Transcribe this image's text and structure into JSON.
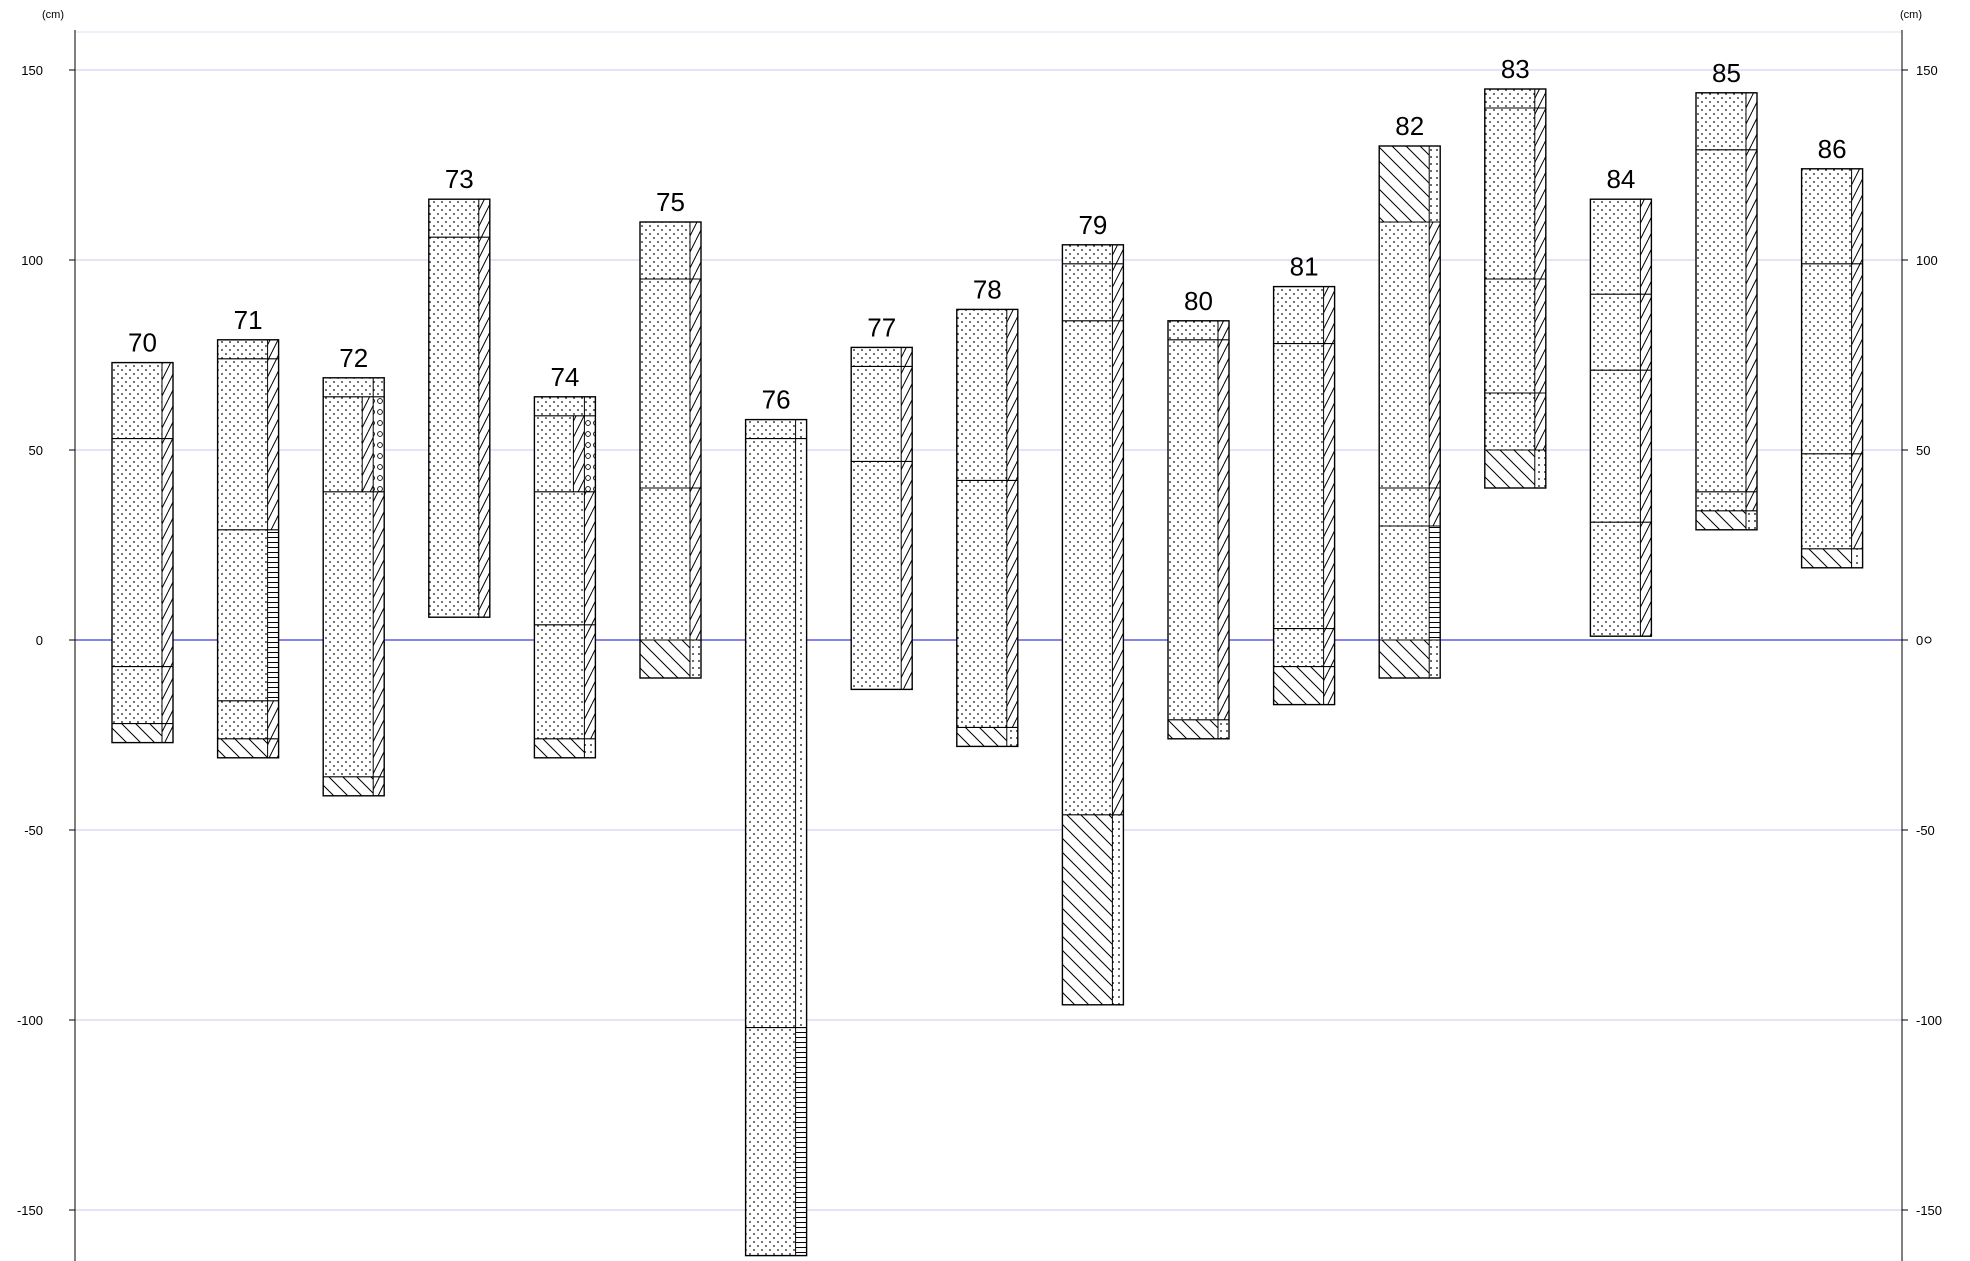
{
  "chart_data": {
    "type": "stratigraphic-columns",
    "y_unit_left": "(cm)",
    "y_unit_right": "(cm)",
    "y_ticks": [
      {
        "value": 150,
        "label": "150"
      },
      {
        "value": 100,
        "label": "100"
      },
      {
        "value": 50,
        "label": "50"
      },
      {
        "value": 0,
        "label": "0"
      },
      {
        "value": -50,
        "label": "-50"
      },
      {
        "value": -100,
        "label": "-100"
      },
      {
        "value": -150,
        "label": "-150"
      }
    ],
    "ylim": [
      -165,
      160
    ],
    "grid": true,
    "reference_line": 0,
    "colors": {
      "grid": "#c8c8f0",
      "zero_line": "#3a3ae0",
      "axis": "#000000",
      "outline": "#000000"
    },
    "cores": [
      {
        "id": "70",
        "label": "70",
        "top": 73,
        "bottom": -27,
        "boundaries": [
          53,
          -7,
          -22
        ],
        "layers": [
          {
            "from": 73,
            "to": -22,
            "main": "sand",
            "side": "diag-right"
          },
          {
            "from": -22,
            "to": -27,
            "main": "diag-left",
            "side": "diag-right"
          }
        ]
      },
      {
        "id": "71",
        "label": "71",
        "top": 79,
        "bottom": -31,
        "boundaries": [
          74,
          29,
          -16,
          -26
        ],
        "layers": [
          {
            "from": 79,
            "to": 29,
            "main": "sand",
            "side": "diag-right"
          },
          {
            "from": 29,
            "to": -16,
            "main": "sand",
            "side": "hstripes"
          },
          {
            "from": -16,
            "to": -26,
            "main": "sand",
            "side": "diag-right"
          },
          {
            "from": -26,
            "to": -31,
            "main": "diag-left",
            "side": "diag-right"
          }
        ]
      },
      {
        "id": "72",
        "label": "72",
        "top": 69,
        "bottom": -41,
        "boundaries": [
          64,
          39,
          -36
        ],
        "layers": [
          {
            "from": 69,
            "to": 64,
            "main": "sand",
            "side": "sand"
          },
          {
            "from": 64,
            "to": 39,
            "main": "sand",
            "side": "diag-right",
            "side2": "gravel"
          },
          {
            "from": 39,
            "to": -36,
            "main": "sand",
            "side": "diag-right"
          },
          {
            "from": -36,
            "to": -41,
            "main": "diag-left",
            "side": "diag-right"
          }
        ]
      },
      {
        "id": "73",
        "label": "73",
        "top": 116,
        "bottom": 6,
        "boundaries": [
          106
        ],
        "layers": [
          {
            "from": 116,
            "to": 6,
            "main": "sand",
            "side": "diag-right"
          }
        ]
      },
      {
        "id": "74",
        "label": "74",
        "top": 64,
        "bottom": -31,
        "boundaries": [
          59,
          39,
          4,
          -26
        ],
        "layers": [
          {
            "from": 64,
            "to": 59,
            "main": "sand",
            "side": "sand"
          },
          {
            "from": 59,
            "to": 39,
            "main": "sand",
            "side": "diag-right",
            "side2": "gravel"
          },
          {
            "from": 39,
            "to": -26,
            "main": "sand",
            "side": "diag-right"
          },
          {
            "from": -26,
            "to": -31,
            "main": "diag-left",
            "side": "dots"
          }
        ]
      },
      {
        "id": "75",
        "label": "75",
        "top": 110,
        "bottom": -10,
        "boundaries": [
          95,
          40,
          0
        ],
        "layers": [
          {
            "from": 110,
            "to": 0,
            "main": "sand",
            "side": "diag-right"
          },
          {
            "from": 0,
            "to": -10,
            "main": "diag-left",
            "side": "dots"
          }
        ]
      },
      {
        "id": "76",
        "label": "76",
        "top": 58,
        "bottom": -162,
        "boundaries": [
          53,
          -102
        ],
        "layers": [
          {
            "from": 58,
            "to": -102,
            "main": "sand",
            "side": "dots"
          },
          {
            "from": -102,
            "to": -162,
            "main": "sand",
            "side": "hstripes"
          }
        ]
      },
      {
        "id": "77",
        "label": "77",
        "top": 77,
        "bottom": -13,
        "boundaries": [
          72,
          47
        ],
        "layers": [
          {
            "from": 77,
            "to": -13,
            "main": "sand",
            "side": "diag-right"
          }
        ]
      },
      {
        "id": "78",
        "label": "78",
        "top": 87,
        "bottom": -28,
        "boundaries": [
          42,
          -23
        ],
        "layers": [
          {
            "from": 87,
            "to": -23,
            "main": "sand",
            "side": "diag-right"
          },
          {
            "from": -23,
            "to": -28,
            "main": "diag-left",
            "side": "dots"
          }
        ]
      },
      {
        "id": "79",
        "label": "79",
        "top": 104,
        "bottom": -96,
        "boundaries": [
          99,
          84,
          -46
        ],
        "layers": [
          {
            "from": 104,
            "to": -46,
            "main": "sand",
            "side": "diag-right"
          },
          {
            "from": -46,
            "to": -96,
            "main": "diag-left",
            "side": "dots"
          }
        ]
      },
      {
        "id": "80",
        "label": "80",
        "top": 84,
        "bottom": -26,
        "boundaries": [
          79,
          -21
        ],
        "layers": [
          {
            "from": 84,
            "to": -21,
            "main": "sand",
            "side": "diag-right"
          },
          {
            "from": -21,
            "to": -26,
            "main": "diag-left",
            "side": "dots"
          }
        ]
      },
      {
        "id": "81",
        "label": "81",
        "top": 93,
        "bottom": -17,
        "boundaries": [
          78,
          3,
          -7
        ],
        "layers": [
          {
            "from": 93,
            "to": -7,
            "main": "sand",
            "side": "diag-right"
          },
          {
            "from": -7,
            "to": -17,
            "main": "diag-left",
            "side": "diag-right"
          }
        ]
      },
      {
        "id": "82",
        "label": "82",
        "top": 130,
        "bottom": -10,
        "boundaries": [
          110,
          40,
          30,
          0
        ],
        "layers": [
          {
            "from": 130,
            "to": 110,
            "main": "diag-left",
            "side": "dots"
          },
          {
            "from": 110,
            "to": 30,
            "main": "sand",
            "side": "diag-right"
          },
          {
            "from": 30,
            "to": 0,
            "main": "sand",
            "side": "hstripes"
          },
          {
            "from": 0,
            "to": -10,
            "main": "diag-left",
            "side": "dots"
          }
        ]
      },
      {
        "id": "83",
        "label": "83",
        "top": 145,
        "bottom": 40,
        "boundaries": [
          140,
          95,
          65,
          50
        ],
        "layers": [
          {
            "from": 145,
            "to": 50,
            "main": "sand",
            "side": "diag-right"
          },
          {
            "from": 50,
            "to": 40,
            "main": "diag-left",
            "side": "dots"
          }
        ]
      },
      {
        "id": "84",
        "label": "84",
        "top": 116,
        "bottom": 1,
        "boundaries": [
          91,
          71,
          31
        ],
        "layers": [
          {
            "from": 116,
            "to": 1,
            "main": "sand",
            "side": "diag-right"
          }
        ]
      },
      {
        "id": "85",
        "label": "85",
        "top": 144,
        "bottom": 29,
        "boundaries": [
          129,
          39,
          34
        ],
        "layers": [
          {
            "from": 144,
            "to": 34,
            "main": "sand",
            "side": "diag-right"
          },
          {
            "from": 34,
            "to": 29,
            "main": "diag-left",
            "side": "dots"
          }
        ]
      },
      {
        "id": "86",
        "label": "86",
        "top": 124,
        "bottom": 19,
        "boundaries": [
          99,
          49,
          24
        ],
        "layers": [
          {
            "from": 124,
            "to": 24,
            "main": "sand",
            "side": "diag-right"
          },
          {
            "from": 24,
            "to": 19,
            "main": "diag-left",
            "side": "dots"
          }
        ]
      }
    ]
  }
}
